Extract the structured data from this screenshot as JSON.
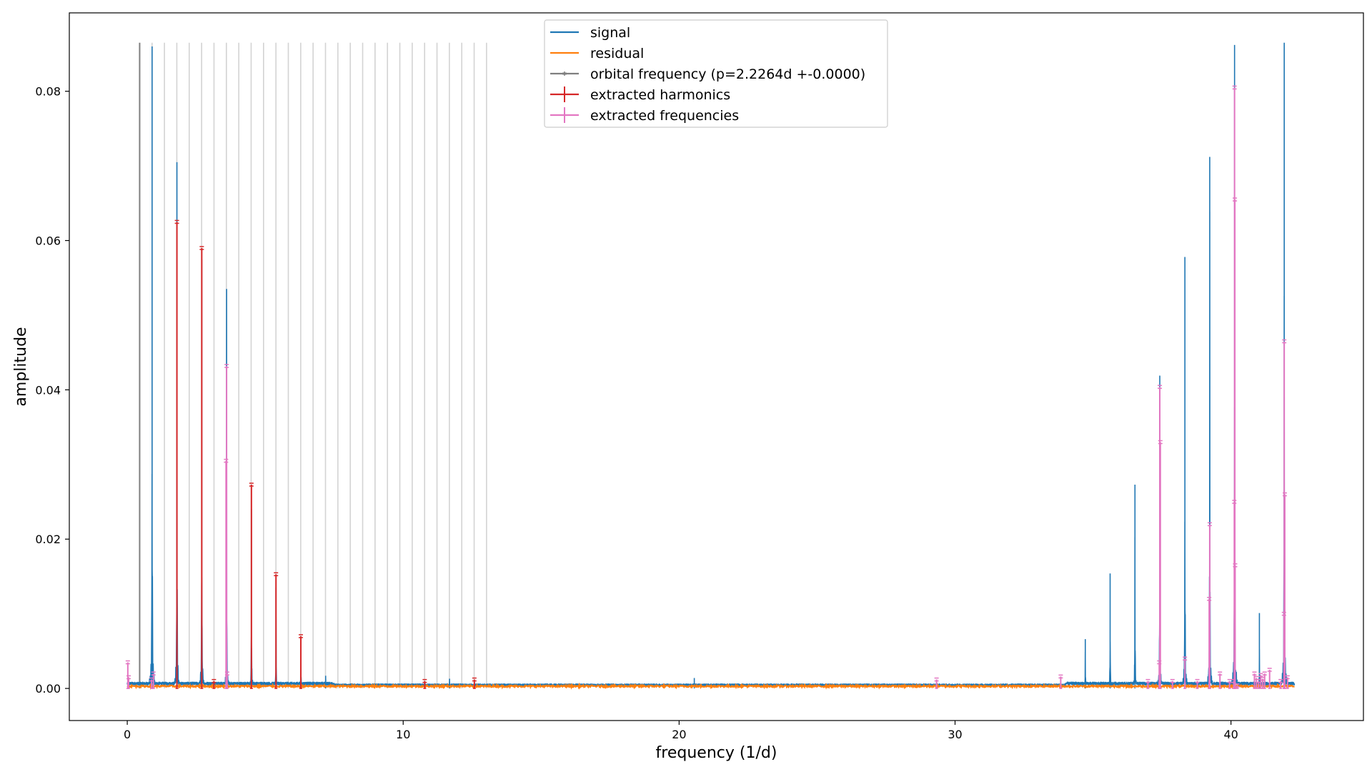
{
  "chart_data": {
    "type": "line",
    "xlabel": "frequency (1/d)",
    "ylabel": "amplitude",
    "xlim": [
      -2.1,
      44.8
    ],
    "ylim": [
      -0.0043,
      0.0905
    ],
    "x_ticks": [
      {
        "value": 0,
        "label": "0"
      },
      {
        "value": 10,
        "label": "10"
      },
      {
        "value": 20,
        "label": "20"
      },
      {
        "value": 30,
        "label": "30"
      },
      {
        "value": 40,
        "label": "40"
      }
    ],
    "y_ticks": [
      {
        "value": 0.0,
        "label": "0.00"
      },
      {
        "value": 0.02,
        "label": "0.02"
      },
      {
        "value": 0.04,
        "label": "0.04"
      },
      {
        "value": 0.06,
        "label": "0.06"
      },
      {
        "value": 0.08,
        "label": "0.08"
      }
    ],
    "legend": {
      "position": "top-center",
      "entries": [
        {
          "label": "signal",
          "color": "#1f77b4",
          "style": "line"
        },
        {
          "label": "residual",
          "color": "#ff7f0e",
          "style": "line"
        },
        {
          "label": "orbital frequency (p=2.2264d +-0.0000)",
          "color": "#7f7f7f",
          "style": "line-marker"
        },
        {
          "label": "extracted harmonics",
          "color": "#d62728",
          "style": "errorbar"
        },
        {
          "label": "extracted frequencies",
          "color": "#e377c2",
          "style": "errorbar"
        }
      ]
    },
    "x_range_spectrum": [
      0.0,
      42.3
    ],
    "signal_baseline": 0.0006,
    "residual_level": 0.0003,
    "signal_peaks": [
      {
        "x": 0.9,
        "y": 0.086
      },
      {
        "x": 1.8,
        "y": 0.0705
      },
      {
        "x": 2.7,
        "y": 0.0575
      },
      {
        "x": 3.6,
        "y": 0.043
      },
      {
        "x": 4.5,
        "y": 0.024
      },
      {
        "x": 5.39,
        "y": 0.0135
      },
      {
        "x": 6.29,
        "y": 0.007
      },
      {
        "x": 7.19,
        "y": 0.0017
      },
      {
        "x": 11.68,
        "y": 0.0013
      },
      {
        "x": 20.55,
        "y": 0.0014
      },
      {
        "x": 34.72,
        "y": 0.0066
      },
      {
        "x": 35.62,
        "y": 0.0154
      },
      {
        "x": 36.52,
        "y": 0.0273
      },
      {
        "x": 37.42,
        "y": 0.0419
      },
      {
        "x": 38.33,
        "y": 0.0578
      },
      {
        "x": 39.23,
        "y": 0.0712
      },
      {
        "x": 40.13,
        "y": 0.0862
      },
      {
        "x": 41.03,
        "y": 0.0101
      },
      {
        "x": 41.93,
        "y": 0.0865
      }
    ],
    "orbital_frequency": {
      "x": 0.449,
      "y": 0.0865
    },
    "harmonic_lines": {
      "start": 0.449,
      "step": 0.449,
      "count": 28,
      "ymax": 0.0865
    },
    "extracted_harmonics": [
      {
        "x": 1.8,
        "y": 0.0625
      },
      {
        "x": 2.7,
        "y": 0.059
      },
      {
        "x": 3.14,
        "y": 0.001
      },
      {
        "x": 4.5,
        "y": 0.0273
      },
      {
        "x": 5.39,
        "y": 0.0153
      },
      {
        "x": 6.29,
        "y": 0.007
      },
      {
        "x": 10.78,
        "y": 0.001
      },
      {
        "x": 12.58,
        "y": 0.0012
      }
    ],
    "extracted_frequencies": [
      {
        "x": 0.02,
        "y": 0.0035
      },
      {
        "x": 0.05,
        "y": 0.0015
      },
      {
        "x": 0.88,
        "y": 0.0012
      },
      {
        "x": 0.95,
        "y": 0.002
      },
      {
        "x": 3.6,
        "y": 0.0432
      },
      {
        "x": 3.58,
        "y": 0.0305
      },
      {
        "x": 3.62,
        "y": 0.002
      },
      {
        "x": 29.33,
        "y": 0.0012
      },
      {
        "x": 33.83,
        "y": 0.0016
      },
      {
        "x": 36.99,
        "y": 0.001
      },
      {
        "x": 37.42,
        "y": 0.0404
      },
      {
        "x": 37.44,
        "y": 0.033
      },
      {
        "x": 37.4,
        "y": 0.0035
      },
      {
        "x": 37.88,
        "y": 0.001
      },
      {
        "x": 38.33,
        "y": 0.004
      },
      {
        "x": 38.78,
        "y": 0.001
      },
      {
        "x": 39.23,
        "y": 0.022
      },
      {
        "x": 39.21,
        "y": 0.012
      },
      {
        "x": 39.6,
        "y": 0.002
      },
      {
        "x": 39.95,
        "y": 0.001
      },
      {
        "x": 40.13,
        "y": 0.0805
      },
      {
        "x": 40.14,
        "y": 0.0655
      },
      {
        "x": 40.12,
        "y": 0.025
      },
      {
        "x": 40.15,
        "y": 0.0165
      },
      {
        "x": 40.1,
        "y": 0.001
      },
      {
        "x": 40.23,
        "y": 0.0004
      },
      {
        "x": 40.85,
        "y": 0.002
      },
      {
        "x": 40.92,
        "y": 0.0014
      },
      {
        "x": 41.0,
        "y": 0.001
      },
      {
        "x": 41.08,
        "y": 0.0018
      },
      {
        "x": 41.15,
        "y": 0.0013
      },
      {
        "x": 41.22,
        "y": 0.002
      },
      {
        "x": 41.4,
        "y": 0.0025
      },
      {
        "x": 41.8,
        "y": 0.001
      },
      {
        "x": 41.93,
        "y": 0.0465
      },
      {
        "x": 41.95,
        "y": 0.026
      },
      {
        "x": 41.92,
        "y": 0.01
      },
      {
        "x": 42.05,
        "y": 0.0015
      }
    ]
  }
}
